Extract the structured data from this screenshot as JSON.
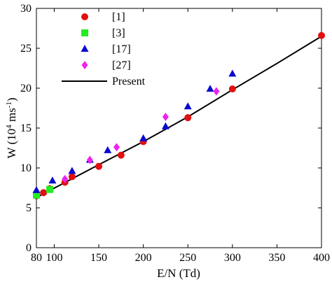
{
  "chart_data": {
    "type": "scatter",
    "xlabel": "E/N (Td)",
    "ylabel_main": "W (10",
    "ylabel_exp1": "4",
    "ylabel_mid": " ms",
    "ylabel_exp2": "-1",
    "ylabel_end": ")",
    "xlim": [
      80,
      400
    ],
    "ylim": [
      0,
      30
    ],
    "xticks": [
      80,
      100,
      150,
      200,
      250,
      300,
      350,
      400
    ],
    "yticks": [
      0,
      5,
      10,
      15,
      20,
      25,
      30
    ],
    "grid": false,
    "legend_position": "top-left",
    "series": [
      {
        "name": "[1]",
        "marker": "circle",
        "color": "#e01010",
        "points": [
          [
            80,
            6.5
          ],
          [
            88,
            6.9
          ],
          [
            95,
            7.4
          ],
          [
            112,
            8.2
          ],
          [
            120,
            8.9
          ],
          [
            150,
            10.2
          ],
          [
            175,
            11.6
          ],
          [
            200,
            13.3
          ],
          [
            250,
            16.3
          ],
          [
            300,
            19.9
          ],
          [
            400,
            26.6
          ]
        ]
      },
      {
        "name": "[3]",
        "marker": "square",
        "color": "#22ee22",
        "points": [
          [
            80,
            6.6
          ],
          [
            95,
            7.3
          ]
        ]
      },
      {
        "name": "[17]",
        "marker": "triangle",
        "color": "#0a0ad0",
        "points": [
          [
            80,
            7.2
          ],
          [
            98,
            8.4
          ],
          [
            120,
            9.6
          ],
          [
            140,
            11.0
          ],
          [
            160,
            12.2
          ],
          [
            200,
            13.7
          ],
          [
            225,
            15.2
          ],
          [
            250,
            17.7
          ],
          [
            275,
            19.9
          ],
          [
            300,
            21.8
          ]
        ]
      },
      {
        "name": "[27]",
        "marker": "diamond",
        "color": "#ee22ee",
        "points": [
          [
            112,
            8.6
          ],
          [
            140,
            11.0
          ],
          [
            170,
            12.6
          ],
          [
            225,
            16.4
          ],
          [
            282,
            19.6
          ]
        ]
      }
    ],
    "line": {
      "name": "Present",
      "color": "#000000",
      "points": [
        [
          80,
          6.3
        ],
        [
          150,
          10.4
        ],
        [
          200,
          13.3
        ],
        [
          250,
          16.4
        ],
        [
          300,
          19.8
        ],
        [
          350,
          23.1
        ],
        [
          400,
          26.5
        ]
      ]
    }
  }
}
